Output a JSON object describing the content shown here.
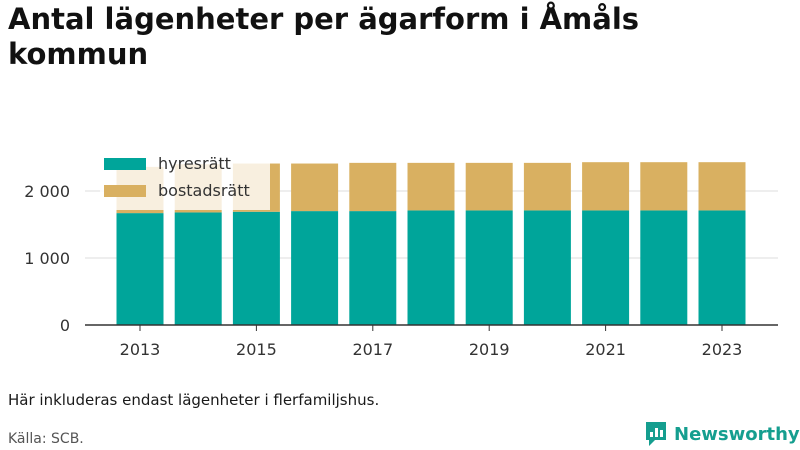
{
  "title": "Antal lägenheter per ägarform i Åmåls kommun",
  "note": "Här inkluderas endast lägenheter i flerfamiljshus.",
  "source": "Källa: SCB.",
  "brand": {
    "name": "Newsworthy",
    "icon": "newsworthy-logo-icon",
    "color": "#159e8f"
  },
  "chart_data": {
    "type": "bar",
    "stacked": true,
    "categories": [
      "2013",
      "2014",
      "2015",
      "2016",
      "2017",
      "2018",
      "2019",
      "2020",
      "2021",
      "2022",
      "2023"
    ],
    "x_tick_labels": [
      "2013",
      "2015",
      "2017",
      "2019",
      "2021",
      "2023"
    ],
    "series": [
      {
        "name": "hyresrätt",
        "color": "#00a59a",
        "values": [
          1670,
          1680,
          1690,
          1700,
          1700,
          1710,
          1710,
          1710,
          1710,
          1710,
          1710
        ]
      },
      {
        "name": "bostadsrätt",
        "color": "#d9b061",
        "values": [
          690,
          720,
          720,
          710,
          720,
          710,
          710,
          710,
          720,
          720,
          720
        ]
      }
    ],
    "ylim": [
      0,
      2500
    ],
    "y_ticks": [
      0,
      1000,
      2000
    ],
    "y_tick_labels": [
      "0",
      "1 000",
      "2 000"
    ],
    "grid": true,
    "legend_position": "top-left",
    "title": "Antal lägenheter per ägarform i Åmåls kommun",
    "xlabel": "",
    "ylabel": ""
  }
}
